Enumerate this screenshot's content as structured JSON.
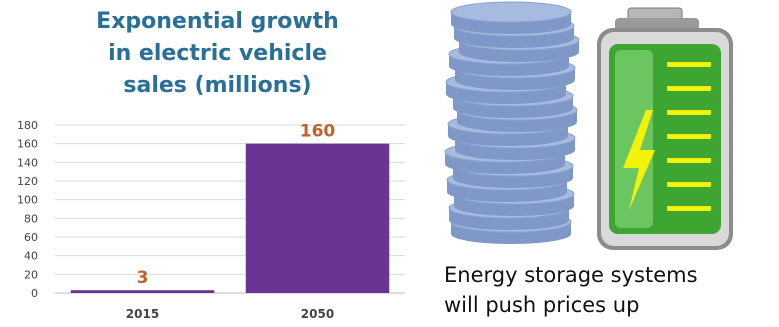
{
  "title_lines": [
    "Exponential  growth",
    "in electric vehicle",
    "sales (millions)"
  ],
  "caption_lines": [
    "Energy storage systems",
    "will push prices up"
  ],
  "illustration": {
    "coin_stack_icon": "coin-stack",
    "battery_icon": "battery-with-lightning-bolt",
    "battery_charge_bars": 7
  },
  "colors": {
    "title": "#2a6f97",
    "bar": "#6a3494",
    "data_label": "#c0622a",
    "coin_fill": "#a6bbdf",
    "coin_edge": "#7f98c8",
    "battery_green": "#4fc042",
    "battery_bars": "#f2f20a"
  },
  "chart_data": {
    "type": "bar",
    "categories": [
      "2015",
      "2050"
    ],
    "values": [
      3,
      160
    ],
    "data_labels": [
      "3",
      "160"
    ],
    "ylim": [
      0,
      180
    ],
    "yticks": [
      0,
      20,
      40,
      60,
      80,
      100,
      120,
      140,
      160,
      180
    ],
    "grid": true,
    "title": "Exponential  growth in electric vehicle sales (millions)",
    "xlabel": "",
    "ylabel": ""
  }
}
